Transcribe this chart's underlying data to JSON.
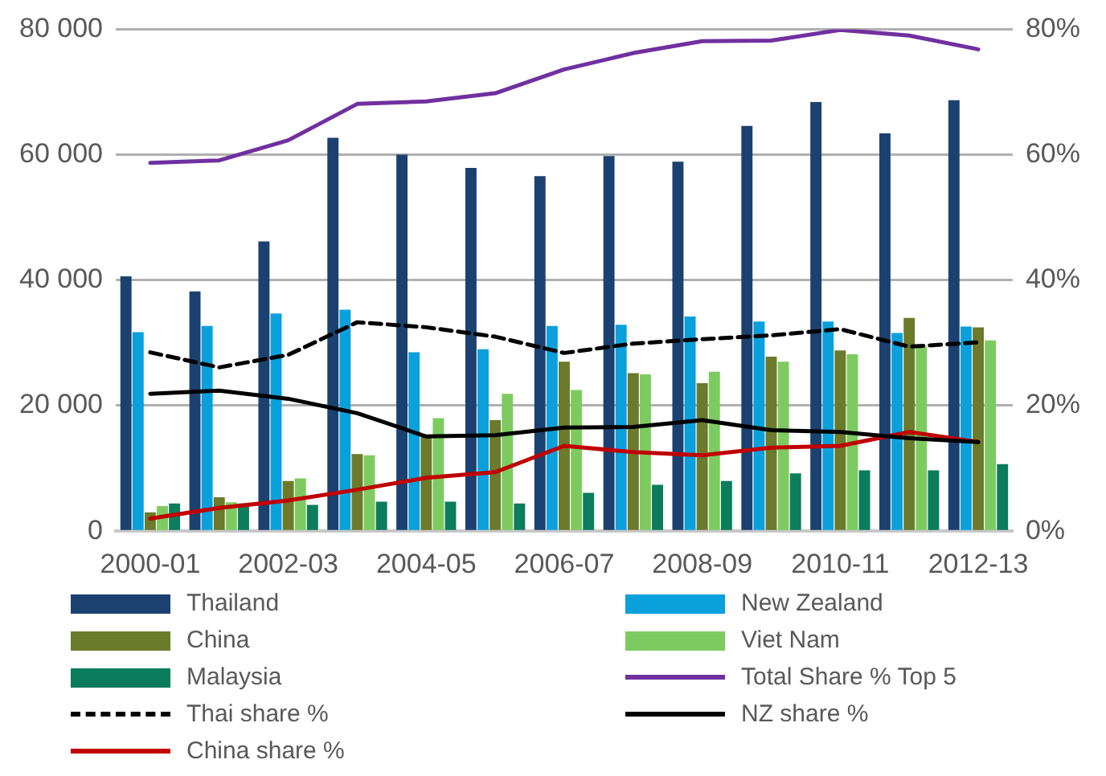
{
  "chart_data": {
    "type": "bar",
    "categories": [
      "2000-01",
      null,
      "2002-03",
      null,
      "2004-05",
      null,
      "2006-07",
      null,
      "2008-09",
      null,
      "2010-11",
      null,
      "2012-13"
    ],
    "series": [
      {
        "name": "Thailand",
        "color": "#1b4170",
        "values": [
          40600,
          38200,
          46200,
          62700,
          60000,
          57900,
          56600,
          59800,
          58900,
          64600,
          68400,
          63400,
          68700
        ]
      },
      {
        "name": "New Zealand",
        "color": "#0aa0dc",
        "values": [
          31700,
          32700,
          34700,
          35300,
          28500,
          29000,
          32700,
          32900,
          34200,
          33400,
          33400,
          31600,
          32600
        ]
      },
      {
        "name": "China",
        "color": "#6b7a2b",
        "values": [
          3000,
          5400,
          8000,
          12300,
          15100,
          17700,
          27000,
          25200,
          23600,
          27800,
          28800,
          34000,
          32500
        ]
      },
      {
        "name": "Viet Nam",
        "color": "#7dcb60",
        "values": [
          4000,
          4600,
          8400,
          12100,
          18000,
          21900,
          22500,
          25000,
          25400,
          27000,
          28200,
          29400,
          30400
        ]
      },
      {
        "name": "Malaysia",
        "color": "#0b7d5c",
        "values": [
          4400,
          4400,
          4200,
          4700,
          4700,
          4400,
          6100,
          7400,
          8000,
          9200,
          9700,
          9700,
          10700
        ]
      },
      {
        "name": "Total Share % Top 5",
        "type": "line",
        "axis": "y2",
        "color": "#7030a0",
        "line_style": "solid",
        "values": [
          58.7,
          59.1,
          62.3,
          68.1,
          68.5,
          69.8,
          73.6,
          76.2,
          78.1,
          78.2,
          79.9,
          79.0,
          76.8
        ]
      },
      {
        "name": "Thai share %",
        "type": "line",
        "axis": "y2",
        "color": "#000000",
        "line_style": "dashed",
        "values": [
          28.5,
          26.1,
          28.1,
          33.3,
          32.5,
          31.0,
          28.4,
          29.9,
          30.6,
          31.2,
          32.2,
          29.4,
          30.1
        ]
      },
      {
        "name": "NZ share %",
        "type": "line",
        "axis": "y2",
        "color": "#000000",
        "line_style": "solid",
        "values": [
          21.9,
          22.4,
          21.1,
          18.8,
          15.1,
          15.3,
          16.5,
          16.6,
          17.7,
          16.1,
          15.8,
          14.8,
          14.2
        ]
      },
      {
        "name": "China share %",
        "type": "line",
        "axis": "y2",
        "color": "#c00000",
        "line_style": "solid",
        "values": [
          2.0,
          3.7,
          4.9,
          6.6,
          8.5,
          9.4,
          13.6,
          12.6,
          12.1,
          13.3,
          13.6,
          15.8,
          14.2
        ]
      }
    ],
    "ylim": [
      0,
      80000
    ],
    "yticks": [
      {
        "value": 0,
        "label": "0"
      },
      {
        "value": 20000,
        "label": "20 000"
      },
      {
        "value": 40000,
        "label": "40 000"
      },
      {
        "value": 60000,
        "label": "60 000"
      },
      {
        "value": 80000,
        "label": "80 000"
      }
    ],
    "y2lim": [
      0,
      80
    ],
    "y2ticks": [
      {
        "value": 0,
        "label": "0%"
      },
      {
        "value": 20,
        "label": "20%"
      },
      {
        "value": 40,
        "label": "40%"
      },
      {
        "value": 60,
        "label": "60%"
      },
      {
        "value": 80,
        "label": "80%"
      }
    ],
    "grid": "y",
    "legend": "bottom"
  }
}
